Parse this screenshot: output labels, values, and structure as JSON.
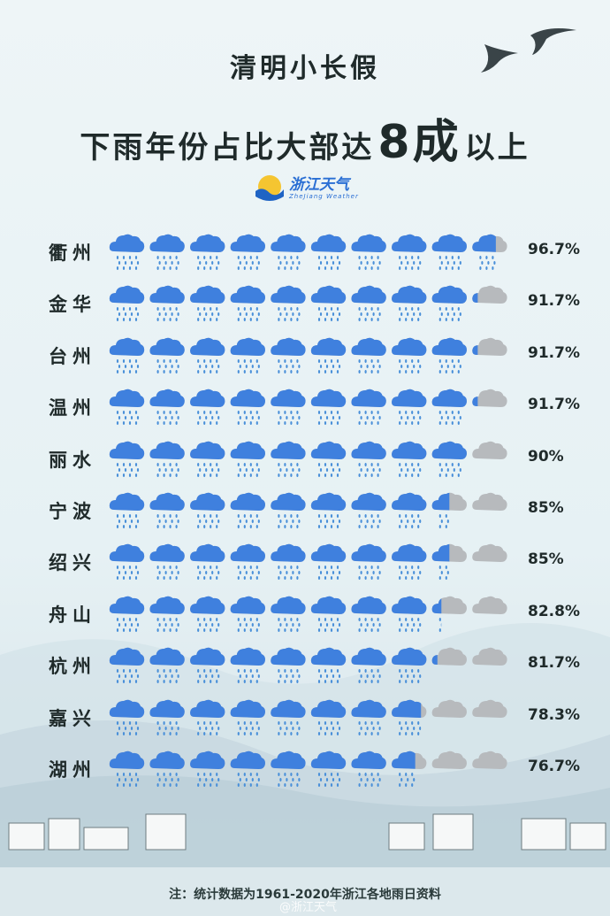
{
  "title_line1": "清明小长假",
  "title_line2_prefix": "下雨年份占比大部达",
  "title_line2_big": "8成",
  "title_line2_suffix": "以上",
  "logo": {
    "cn": "浙江天气",
    "en": "ZheJiang   Weather"
  },
  "footer": "注：统计数据为1961-2020年浙江各地雨日资料",
  "watermark": "@浙江天气",
  "colors": {
    "rain": "#3f80de",
    "dry": "#b7babd",
    "drop": "#4a90d9"
  },
  "chart_data": {
    "type": "pictogram",
    "title": "清明小长假 下雨年份占比",
    "unit": "%",
    "icons_per_row": 10,
    "categories": [
      "衢州",
      "金华",
      "台州",
      "温州",
      "丽水",
      "宁波",
      "绍兴",
      "舟山",
      "杭州",
      "嘉兴",
      "湖州"
    ],
    "values": [
      96.7,
      91.7,
      91.7,
      91.7,
      90,
      85,
      85,
      82.8,
      81.7,
      78.3,
      76.7
    ],
    "labels": [
      "96.7%",
      "91.7%",
      "91.7%",
      "91.7%",
      "90%",
      "85%",
      "85%",
      "82.8%",
      "81.7%",
      "78.3%",
      "76.7%"
    ]
  }
}
